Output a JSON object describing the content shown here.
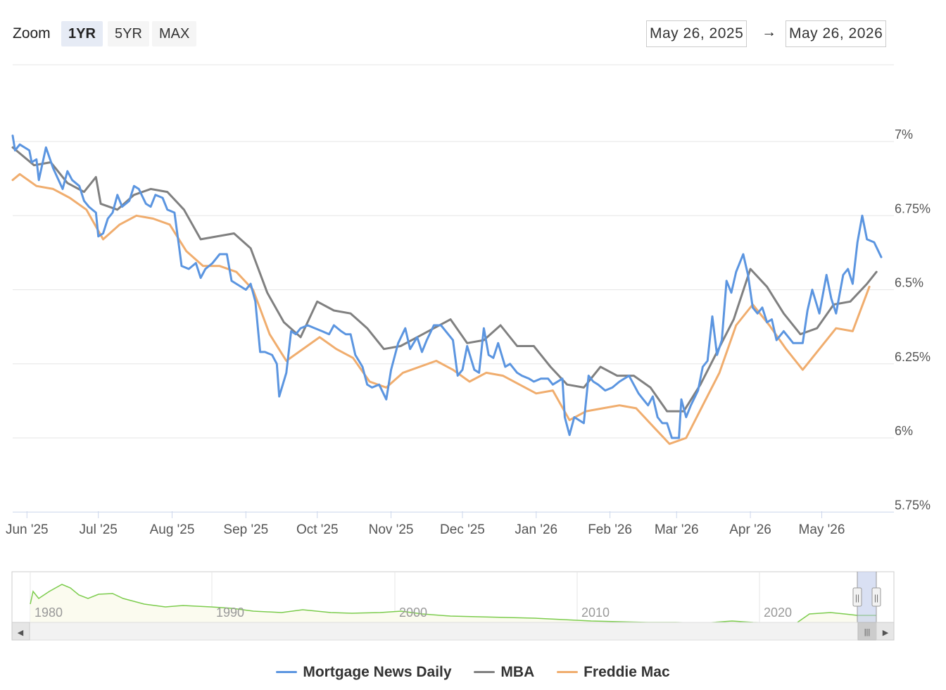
{
  "toolbar": {
    "zoom_label": "Zoom",
    "buttons": [
      "1YR",
      "5YR",
      "MAX"
    ],
    "active": "1YR",
    "from_date": "May 26, 2025",
    "arrow": "→",
    "to_date": "May 26, 2026"
  },
  "colors": {
    "mnd": "#5b95e0",
    "mba": "#808080",
    "freddie": "#f0ad6e",
    "navigator_line": "#7ccc4d",
    "navigator_mask": "#b9c6ea"
  },
  "chart_data": {
    "type": "line",
    "title": "",
    "xlabel": "",
    "ylabel": "",
    "ylim": [
      5.75,
      7.0
    ],
    "yticks": [
      5.75,
      6.0,
      6.25,
      6.5,
      6.75,
      7.0
    ],
    "ytick_labels": [
      "5.75%",
      "6%",
      "6.25%",
      "6.5%",
      "6.75%",
      "7%"
    ],
    "x_range": [
      "2025-05-26",
      "2026-05-26"
    ],
    "xticks": [
      "2025-06-01",
      "2025-07-01",
      "2025-08-01",
      "2025-09-01",
      "2025-10-01",
      "2025-11-01",
      "2025-12-01",
      "2026-01-01",
      "2026-02-01",
      "2026-03-01",
      "2026-04-01",
      "2026-05-01"
    ],
    "xtick_labels": [
      "Jun '25",
      "Jul '25",
      "Aug '25",
      "Sep '25",
      "Oct '25",
      "Nov '25",
      "Dec '25",
      "Jan '26",
      "Feb '26",
      "Mar '26",
      "Apr '26",
      "May '26"
    ],
    "grid": true,
    "legend_position": "bottom-center",
    "series": [
      {
        "name": "Mortgage News Daily",
        "points": [
          [
            "2025-05-26",
            7.02
          ],
          [
            "2025-05-27",
            6.97
          ],
          [
            "2025-05-29",
            6.99
          ],
          [
            "2025-06-02",
            6.97
          ],
          [
            "2025-06-03",
            6.93
          ],
          [
            "2025-06-05",
            6.94
          ],
          [
            "2025-06-06",
            6.87
          ],
          [
            "2025-06-09",
            6.98
          ],
          [
            "2025-06-12",
            6.91
          ],
          [
            "2025-06-16",
            6.84
          ],
          [
            "2025-06-18",
            6.9
          ],
          [
            "2025-06-20",
            6.87
          ],
          [
            "2025-06-23",
            6.85
          ],
          [
            "2025-06-25",
            6.8
          ],
          [
            "2025-06-27",
            6.78
          ],
          [
            "2025-06-30",
            6.76
          ],
          [
            "2025-07-01",
            6.68
          ],
          [
            "2025-07-03",
            6.69
          ],
          [
            "2025-07-05",
            6.74
          ],
          [
            "2025-07-07",
            6.76
          ],
          [
            "2025-07-09",
            6.82
          ],
          [
            "2025-07-11",
            6.78
          ],
          [
            "2025-07-14",
            6.8
          ],
          [
            "2025-07-16",
            6.85
          ],
          [
            "2025-07-18",
            6.84
          ],
          [
            "2025-07-21",
            6.79
          ],
          [
            "2025-07-23",
            6.78
          ],
          [
            "2025-07-25",
            6.82
          ],
          [
            "2025-07-28",
            6.81
          ],
          [
            "2025-07-30",
            6.77
          ],
          [
            "2025-08-02",
            6.76
          ],
          [
            "2025-08-04",
            6.64
          ],
          [
            "2025-08-05",
            6.58
          ],
          [
            "2025-08-08",
            6.57
          ],
          [
            "2025-08-11",
            6.59
          ],
          [
            "2025-08-13",
            6.54
          ],
          [
            "2025-08-15",
            6.57
          ],
          [
            "2025-08-18",
            6.59
          ],
          [
            "2025-08-21",
            6.62
          ],
          [
            "2025-08-24",
            6.62
          ],
          [
            "2025-08-26",
            6.53
          ],
          [
            "2025-08-28",
            6.52
          ],
          [
            "2025-09-01",
            6.5
          ],
          [
            "2025-09-03",
            6.52
          ],
          [
            "2025-09-05",
            6.46
          ],
          [
            "2025-09-07",
            6.29
          ],
          [
            "2025-09-09",
            6.29
          ],
          [
            "2025-09-12",
            6.28
          ],
          [
            "2025-09-14",
            6.25
          ],
          [
            "2025-09-15",
            6.14
          ],
          [
            "2025-09-18",
            6.22
          ],
          [
            "2025-09-20",
            6.36
          ],
          [
            "2025-09-22",
            6.35
          ],
          [
            "2025-09-24",
            6.37
          ],
          [
            "2025-09-27",
            6.38
          ],
          [
            "2025-09-30",
            6.37
          ],
          [
            "2025-10-03",
            6.36
          ],
          [
            "2025-10-06",
            6.35
          ],
          [
            "2025-10-08",
            6.38
          ],
          [
            "2025-10-11",
            6.36
          ],
          [
            "2025-10-13",
            6.35
          ],
          [
            "2025-10-15",
            6.35
          ],
          [
            "2025-10-17",
            6.28
          ],
          [
            "2025-10-20",
            6.24
          ],
          [
            "2025-10-22",
            6.18
          ],
          [
            "2025-10-24",
            6.17
          ],
          [
            "2025-10-27",
            6.18
          ],
          [
            "2025-10-30",
            6.13
          ],
          [
            "2025-11-01",
            6.23
          ],
          [
            "2025-11-04",
            6.32
          ],
          [
            "2025-11-07",
            6.37
          ],
          [
            "2025-11-09",
            6.3
          ],
          [
            "2025-11-12",
            6.34
          ],
          [
            "2025-11-14",
            6.29
          ],
          [
            "2025-11-16",
            6.33
          ],
          [
            "2025-11-19",
            6.38
          ],
          [
            "2025-11-22",
            6.38
          ],
          [
            "2025-11-24",
            6.36
          ],
          [
            "2025-11-27",
            6.33
          ],
          [
            "2025-11-29",
            6.21
          ],
          [
            "2025-12-01",
            6.23
          ],
          [
            "2025-12-03",
            6.31
          ],
          [
            "2025-12-06",
            6.23
          ],
          [
            "2025-12-08",
            6.22
          ],
          [
            "2025-12-10",
            6.37
          ],
          [
            "2025-12-12",
            6.28
          ],
          [
            "2025-12-14",
            6.27
          ],
          [
            "2025-12-16",
            6.32
          ],
          [
            "2025-12-19",
            6.24
          ],
          [
            "2025-12-21",
            6.25
          ],
          [
            "2025-12-24",
            6.22
          ],
          [
            "2025-12-26",
            6.21
          ],
          [
            "2025-12-29",
            6.2
          ],
          [
            "2025-12-31",
            6.19
          ],
          [
            "2026-01-03",
            6.2
          ],
          [
            "2026-01-06",
            6.2
          ],
          [
            "2026-01-08",
            6.18
          ],
          [
            "2026-01-12",
            6.2
          ],
          [
            "2026-01-13",
            6.07
          ],
          [
            "2026-01-15",
            6.01
          ],
          [
            "2026-01-17",
            6.07
          ],
          [
            "2026-01-21",
            6.05
          ],
          [
            "2026-01-23",
            6.21
          ],
          [
            "2026-01-25",
            6.19
          ],
          [
            "2026-01-27",
            6.18
          ],
          [
            "2026-01-30",
            6.16
          ],
          [
            "2026-02-02",
            6.17
          ],
          [
            "2026-02-05",
            6.19
          ],
          [
            "2026-02-09",
            6.21
          ],
          [
            "2026-02-11",
            6.18
          ],
          [
            "2026-02-13",
            6.15
          ],
          [
            "2026-02-15",
            6.13
          ],
          [
            "2026-02-17",
            6.11
          ],
          [
            "2026-02-19",
            6.14
          ],
          [
            "2026-02-21",
            6.07
          ],
          [
            "2026-02-23",
            6.05
          ],
          [
            "2026-02-25",
            6.05
          ],
          [
            "2026-02-27",
            6.0
          ],
          [
            "2026-02-28",
            6.0
          ],
          [
            "2026-03-02",
            6.0
          ],
          [
            "2026-03-03",
            6.13
          ],
          [
            "2026-03-05",
            6.07
          ],
          [
            "2026-03-07",
            6.11
          ],
          [
            "2026-03-10",
            6.16
          ],
          [
            "2026-03-12",
            6.24
          ],
          [
            "2026-03-14",
            6.26
          ],
          [
            "2026-03-16",
            6.41
          ],
          [
            "2026-03-18",
            6.28
          ],
          [
            "2026-03-20",
            6.33
          ],
          [
            "2026-03-22",
            6.53
          ],
          [
            "2026-03-24",
            6.49
          ],
          [
            "2026-03-26",
            6.56
          ],
          [
            "2026-03-29",
            6.62
          ],
          [
            "2026-03-31",
            6.55
          ],
          [
            "2026-04-02",
            6.44
          ],
          [
            "2026-04-04",
            6.42
          ],
          [
            "2026-04-06",
            6.44
          ],
          [
            "2026-04-08",
            6.39
          ],
          [
            "2026-04-10",
            6.4
          ],
          [
            "2026-04-12",
            6.33
          ],
          [
            "2026-04-15",
            6.36
          ],
          [
            "2026-04-19",
            6.32
          ],
          [
            "2026-04-23",
            6.32
          ],
          [
            "2026-04-25",
            6.43
          ],
          [
            "2026-04-27",
            6.5
          ],
          [
            "2026-04-30",
            6.42
          ],
          [
            "2026-05-03",
            6.55
          ],
          [
            "2026-05-05",
            6.47
          ],
          [
            "2026-05-07",
            6.42
          ],
          [
            "2026-05-10",
            6.55
          ],
          [
            "2026-05-12",
            6.57
          ],
          [
            "2026-05-14",
            6.52
          ],
          [
            "2026-05-16",
            6.66
          ],
          [
            "2026-05-18",
            6.75
          ],
          [
            "2026-05-20",
            6.67
          ],
          [
            "2026-05-23",
            6.66
          ],
          [
            "2026-05-26",
            6.61
          ]
        ]
      },
      {
        "name": "MBA",
        "points": [
          [
            "2025-05-26",
            6.98
          ],
          [
            "2025-06-04",
            6.92
          ],
          [
            "2025-06-11",
            6.93
          ],
          [
            "2025-06-18",
            6.86
          ],
          [
            "2025-06-25",
            6.83
          ],
          [
            "2025-06-30",
            6.88
          ],
          [
            "2025-07-02",
            6.79
          ],
          [
            "2025-07-09",
            6.77
          ],
          [
            "2025-07-16",
            6.82
          ],
          [
            "2025-07-23",
            6.84
          ],
          [
            "2025-07-30",
            6.83
          ],
          [
            "2025-08-06",
            6.77
          ],
          [
            "2025-08-13",
            6.67
          ],
          [
            "2025-08-27",
            6.69
          ],
          [
            "2025-09-03",
            6.64
          ],
          [
            "2025-09-10",
            6.49
          ],
          [
            "2025-09-17",
            6.39
          ],
          [
            "2025-09-24",
            6.34
          ],
          [
            "2025-10-01",
            6.46
          ],
          [
            "2025-10-08",
            6.43
          ],
          [
            "2025-10-15",
            6.42
          ],
          [
            "2025-10-22",
            6.37
          ],
          [
            "2025-10-29",
            6.3
          ],
          [
            "2025-11-05",
            6.31
          ],
          [
            "2025-11-12",
            6.34
          ],
          [
            "2025-11-19",
            6.37
          ],
          [
            "2025-11-26",
            6.4
          ],
          [
            "2025-12-03",
            6.32
          ],
          [
            "2025-12-10",
            6.33
          ],
          [
            "2025-12-17",
            6.38
          ],
          [
            "2025-12-24",
            6.31
          ],
          [
            "2025-12-31",
            6.31
          ],
          [
            "2026-01-07",
            6.24
          ],
          [
            "2026-01-14",
            6.18
          ],
          [
            "2026-01-21",
            6.17
          ],
          [
            "2026-01-28",
            6.24
          ],
          [
            "2026-02-04",
            6.21
          ],
          [
            "2026-02-11",
            6.21
          ],
          [
            "2026-02-18",
            6.17
          ],
          [
            "2026-02-25",
            6.09
          ],
          [
            "2026-03-04",
            6.09
          ],
          [
            "2026-03-11",
            6.18
          ],
          [
            "2026-03-18",
            6.29
          ],
          [
            "2026-03-25",
            6.4
          ],
          [
            "2026-04-01",
            6.57
          ],
          [
            "2026-04-08",
            6.51
          ],
          [
            "2026-04-15",
            6.42
          ],
          [
            "2026-04-22",
            6.35
          ],
          [
            "2026-04-29",
            6.37
          ],
          [
            "2026-05-06",
            6.45
          ],
          [
            "2026-05-13",
            6.46
          ],
          [
            "2026-05-20",
            6.52
          ],
          [
            "2026-05-24",
            6.56
          ]
        ]
      },
      {
        "name": "Freddie Mac",
        "points": [
          [
            "2025-05-26",
            6.87
          ],
          [
            "2025-05-29",
            6.89
          ],
          [
            "2025-06-05",
            6.85
          ],
          [
            "2025-06-12",
            6.84
          ],
          [
            "2025-06-19",
            6.81
          ],
          [
            "2025-06-26",
            6.77
          ],
          [
            "2025-07-03",
            6.67
          ],
          [
            "2025-07-10",
            6.72
          ],
          [
            "2025-07-17",
            6.75
          ],
          [
            "2025-07-24",
            6.74
          ],
          [
            "2025-07-31",
            6.72
          ],
          [
            "2025-08-07",
            6.63
          ],
          [
            "2025-08-14",
            6.58
          ],
          [
            "2025-08-21",
            6.58
          ],
          [
            "2025-08-28",
            6.56
          ],
          [
            "2025-09-04",
            6.5
          ],
          [
            "2025-09-11",
            6.35
          ],
          [
            "2025-09-18",
            6.26
          ],
          [
            "2025-10-02",
            6.34
          ],
          [
            "2025-10-09",
            6.3
          ],
          [
            "2025-10-16",
            6.27
          ],
          [
            "2025-10-23",
            6.19
          ],
          [
            "2025-10-30",
            6.17
          ],
          [
            "2025-11-06",
            6.22
          ],
          [
            "2025-11-20",
            6.26
          ],
          [
            "2025-11-27",
            6.23
          ],
          [
            "2025-12-04",
            6.19
          ],
          [
            "2025-12-11",
            6.22
          ],
          [
            "2025-12-18",
            6.21
          ],
          [
            "2025-12-25",
            6.18
          ],
          [
            "2026-01-01",
            6.15
          ],
          [
            "2026-01-08",
            6.16
          ],
          [
            "2026-01-15",
            6.06
          ],
          [
            "2026-01-22",
            6.09
          ],
          [
            "2026-01-29",
            6.1
          ],
          [
            "2026-02-05",
            6.11
          ],
          [
            "2026-02-12",
            6.1
          ],
          [
            "2026-02-19",
            6.04
          ],
          [
            "2026-02-26",
            5.98
          ],
          [
            "2026-03-05",
            6.0
          ],
          [
            "2026-03-12",
            6.11
          ],
          [
            "2026-03-19",
            6.22
          ],
          [
            "2026-03-26",
            6.38
          ],
          [
            "2026-04-02",
            6.45
          ],
          [
            "2026-04-09",
            6.38
          ],
          [
            "2026-04-16",
            6.3
          ],
          [
            "2026-04-23",
            6.23
          ],
          [
            "2026-04-30",
            6.3
          ],
          [
            "2026-05-07",
            6.37
          ],
          [
            "2026-05-14",
            6.36
          ],
          [
            "2026-05-21",
            6.51
          ]
        ]
      }
    ]
  },
  "navigator": {
    "labels": [
      "1980",
      "1990",
      "2000",
      "2010",
      "2020"
    ],
    "scroll_left": "◀",
    "scroll_right": "▶",
    "grip": "|||",
    "handle_grip": "||"
  }
}
